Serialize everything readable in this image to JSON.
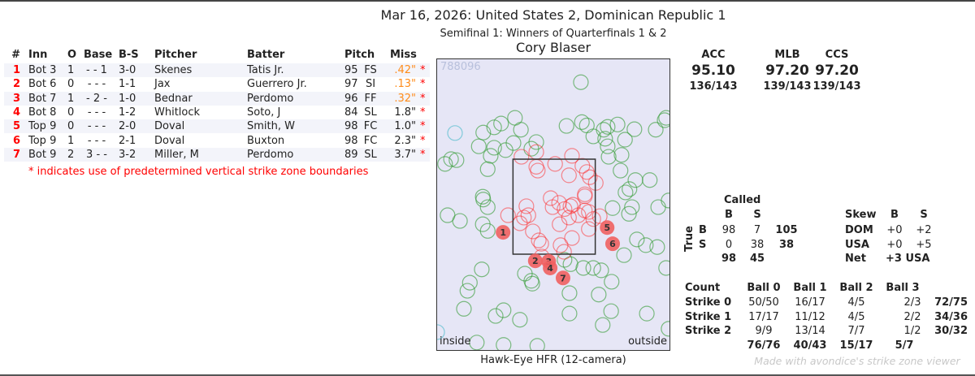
{
  "header": {
    "title": "Mar 16, 2026: United States 2, Dominican Republic 1",
    "subtitle": "Semifinal 1: Winners of Quarterfinals 1 & 2",
    "umpire": "Cory Blaser"
  },
  "table": {
    "columns": [
      "#",
      "Inn",
      "O",
      "Base",
      "B-S",
      "Pitcher",
      "Batter",
      "Pitch",
      "Miss"
    ],
    "rows": [
      {
        "num": "1",
        "inn": "Bot 3",
        "outs": "1",
        "base": "- - 1",
        "count": "3-0",
        "pitcher": "Skenes",
        "batter": "Tatis Jr.",
        "velo": "95",
        "type": "FS",
        "miss": ".42\"",
        "star": "*",
        "miss_color": "orange"
      },
      {
        "num": "2",
        "inn": "Bot 6",
        "outs": "0",
        "base": "- - -",
        "count": "1-1",
        "pitcher": "Jax",
        "batter": "Guerrero Jr.",
        "velo": "97",
        "type": "SI",
        "miss": ".13\"",
        "star": "*",
        "miss_color": "orange"
      },
      {
        "num": "3",
        "inn": "Bot 7",
        "outs": "1",
        "base": "- 2 -",
        "count": "1-0",
        "pitcher": "Bednar",
        "batter": "Perdomo",
        "velo": "96",
        "type": "FF",
        "miss": ".32\"",
        "star": "*",
        "miss_color": "orange"
      },
      {
        "num": "4",
        "inn": "Bot 8",
        "outs": "0",
        "base": "- - -",
        "count": "1-2",
        "pitcher": "Whitlock",
        "batter": "Soto, J",
        "velo": "84",
        "type": "SL",
        "miss": "1.8\"",
        "star": "*",
        "miss_color": "dark"
      },
      {
        "num": "5",
        "inn": "Top 9",
        "outs": "0",
        "base": "- - -",
        "count": "2-0",
        "pitcher": "Doval",
        "batter": "Smith, W",
        "velo": "98",
        "type": "FC",
        "miss": "1.0\"",
        "star": "*",
        "miss_color": "dark"
      },
      {
        "num": "6",
        "inn": "Top 9",
        "outs": "1",
        "base": "- - -",
        "count": "2-1",
        "pitcher": "Doval",
        "batter": "Buxton",
        "velo": "98",
        "type": "FC",
        "miss": "2.3\"",
        "star": "*",
        "miss_color": "dark"
      },
      {
        "num": "7",
        "inn": "Bot 9",
        "outs": "2",
        "base": "3 - -",
        "count": "3-2",
        "pitcher": "Miller, M",
        "batter": "Perdomo",
        "velo": "89",
        "type": "SL",
        "miss": "3.7\"",
        "star": "*",
        "miss_color": "dark"
      }
    ],
    "footnote": "* indicates use of predetermined vertical strike zone boundaries"
  },
  "chart_data": {
    "type": "scatter",
    "watermark": "788096",
    "xlabel_left": "inside",
    "xlabel_right": "outside",
    "caption": "Hawk-Eye HFR (12-camera)",
    "units": "feet (plate_x, plate_z)",
    "zone": {
      "x": [
        -0.83,
        0.83
      ],
      "z": [
        1.5,
        3.5
      ]
    },
    "xlim": [
      -2.38,
      2.34
    ],
    "zlim": [
      -0.6,
      5.62
    ],
    "colors": {
      "ball": "#2e9a2e",
      "strike": "#ff2020",
      "other": "#40b8c8",
      "missed": "#f06060"
    },
    "balls": [
      [
        0.54,
        5.12
      ],
      [
        -0.79,
        4.37
      ],
      [
        -0.67,
        4.12
      ],
      [
        -1.21,
        4.17
      ],
      [
        -1.07,
        4.25
      ],
      [
        -1.43,
        4.06
      ],
      [
        -1.28,
        3.57
      ],
      [
        -1.52,
        3.77
      ],
      [
        -2.2,
        3.4
      ],
      [
        -2.08,
        3.5
      ],
      [
        -1.97,
        3.48
      ],
      [
        -1.34,
        3.29
      ],
      [
        -1.21,
        3.74
      ],
      [
        -0.82,
        3.84
      ],
      [
        -0.36,
        3.86
      ],
      [
        -0.46,
        3.72
      ],
      [
        -0.98,
        3.69
      ],
      [
        0.25,
        4.2
      ],
      [
        0.56,
        4.28
      ],
      [
        0.66,
        4.21
      ],
      [
        0.79,
        3.98
      ],
      [
        1.0,
        4.12
      ],
      [
        1.08,
        4.18
      ],
      [
        1.28,
        4.23
      ],
      [
        1.62,
        4.13
      ],
      [
        2.05,
        4.12
      ],
      [
        2.23,
        4.32
      ],
      [
        2.26,
        4.37
      ],
      [
        1.43,
        3.91
      ],
      [
        1.03,
        3.93
      ],
      [
        1.08,
        3.77
      ],
      [
        1.36,
        3.59
      ],
      [
        1.1,
        3.55
      ],
      [
        1.34,
        3.26
      ],
      [
        1.44,
        2.8
      ],
      [
        1.52,
        2.87
      ],
      [
        1.93,
        3.06
      ],
      [
        1.64,
        3.06
      ],
      [
        -2.15,
        2.32
      ],
      [
        -1.9,
        2.2
      ],
      [
        -1.44,
        2.71
      ],
      [
        -1.43,
        2.65
      ],
      [
        -1.34,
        2.49
      ],
      [
        -1.44,
        2.13
      ],
      [
        -1.34,
        1.99
      ],
      [
        1.18,
        2.47
      ],
      [
        1.57,
        2.49
      ],
      [
        1.51,
        2.35
      ],
      [
        2.1,
        2.49
      ],
      [
        2.31,
        2.63
      ],
      [
        1.67,
        1.81
      ],
      [
        1.85,
        1.69
      ],
      [
        1.41,
        1.48
      ],
      [
        2.08,
        1.65
      ],
      [
        2.26,
        1.21
      ],
      [
        -1.46,
        1.18
      ],
      [
        -1.7,
        0.9
      ],
      [
        -1.75,
        0.73
      ],
      [
        -1.82,
        0.35
      ],
      [
        -1.02,
        0.32
      ],
      [
        -1.18,
        0.2
      ],
      [
        -0.69,
        0.12
      ],
      [
        -0.59,
        1.09
      ],
      [
        -0.46,
        0.94
      ],
      [
        0.33,
        1.29
      ],
      [
        0.59,
        1.21
      ],
      [
        0.21,
        1.38
      ],
      [
        0.79,
        1.21
      ],
      [
        0.95,
        1.16
      ],
      [
        0.31,
        0.68
      ],
      [
        0.31,
        0.25
      ],
      [
        0.9,
        0.65
      ],
      [
        1.16,
        0.92
      ],
      [
        0.98,
        0.01
      ],
      [
        1.15,
        0.3
      ],
      [
        -0.44,
        0.88
      ],
      [
        -1.56,
        -0.36
      ],
      [
        -1.02,
        -0.41
      ],
      [
        -0.34,
        -0.43
      ],
      [
        1.87,
        0.25
      ],
      [
        2.31,
        -0.07
      ]
    ],
    "other": [
      [
        -2.0,
        4.05
      ],
      [
        -2.36,
        -0.14
      ]
    ],
    "strikes": [
      [
        -0.66,
        3.55
      ],
      [
        -0.36,
        3.65
      ],
      [
        -0.33,
        3.26
      ],
      [
        -0.36,
        3.34
      ],
      [
        0.02,
        3.4
      ],
      [
        0.36,
        3.57
      ],
      [
        0.57,
        3.36
      ],
      [
        0.3,
        3.16
      ],
      [
        0.66,
        3.23
      ],
      [
        0.72,
        3.12
      ],
      [
        0.84,
        3.0
      ],
      [
        0.62,
        2.76
      ],
      [
        -0.56,
        2.51
      ],
      [
        -0.93,
        2.32
      ],
      [
        -0.52,
        2.32
      ],
      [
        -0.69,
        2.15
      ],
      [
        -0.61,
        2.27
      ],
      [
        -0.43,
        1.98
      ],
      [
        -0.31,
        1.79
      ],
      [
        -0.03,
        2.49
      ],
      [
        0.1,
        2.58
      ],
      [
        0.21,
        2.45
      ],
      [
        0.3,
        2.27
      ],
      [
        0.33,
        2.51
      ],
      [
        0.49,
        2.32
      ],
      [
        0.62,
        2.42
      ],
      [
        0.7,
        2.39
      ],
      [
        0.38,
        2.54
      ],
      [
        0.79,
        2.24
      ],
      [
        0.92,
        2.3
      ],
      [
        -0.07,
        2.68
      ],
      [
        0.62,
        2.72
      ],
      [
        0.13,
        1.69
      ],
      [
        0.2,
        1.55
      ],
      [
        -0.26,
        1.72
      ],
      [
        0.11,
        2.13
      ],
      [
        0.7,
        2.03
      ],
      [
        -0.25,
        1.45
      ],
      [
        0.36,
        1.84
      ]
    ],
    "missed": [
      {
        "label": "1",
        "x": -1.03,
        "z": 1.96
      },
      {
        "label": "2",
        "x": -0.38,
        "z": 1.36
      },
      {
        "label": "3",
        "x": -0.11,
        "z": 1.35
      },
      {
        "label": "4",
        "x": -0.08,
        "z": 1.21
      },
      {
        "label": "5",
        "x": 1.07,
        "z": 2.06
      },
      {
        "label": "6",
        "x": 1.18,
        "z": 1.72
      },
      {
        "label": "7",
        "x": 0.18,
        "z": 1.0
      }
    ]
  },
  "accuracy": [
    {
      "label": "ACC",
      "value": "95.10",
      "ratio": "136/143"
    },
    {
      "label": "MLB",
      "value": "97.20",
      "ratio": "139/143"
    },
    {
      "label": "CCS",
      "value": "97.20",
      "ratio": "139/143"
    }
  ],
  "confusion": {
    "called_label": "Called",
    "true_label": "True",
    "col_b": "B",
    "col_s": "S",
    "rows": [
      {
        "label": "B",
        "b": "98",
        "s": "7",
        "total": "105"
      },
      {
        "label": "S",
        "b": "0",
        "s": "38",
        "total": "38"
      }
    ],
    "totals": {
      "b": "98",
      "s": "45"
    }
  },
  "skew": {
    "label": "Skew",
    "col_b": "B",
    "col_s": "S",
    "rows": [
      {
        "team": "DOM",
        "b": "+0",
        "s": "+2"
      },
      {
        "team": "USA",
        "b": "+0",
        "s": "+5"
      }
    ],
    "net_label": "Net",
    "net_value": "+3 USA"
  },
  "counts": {
    "header": [
      "Count",
      "Ball 0",
      "Ball 1",
      "Ball 2",
      "Ball 3"
    ],
    "rows": [
      {
        "label": "Strike 0",
        "cells": [
          "50/50",
          "16/17",
          "4/5",
          "2/3"
        ],
        "total": "72/75"
      },
      {
        "label": "Strike 1",
        "cells": [
          "17/17",
          "11/12",
          "4/5",
          "2/2"
        ],
        "total": "34/36"
      },
      {
        "label": "Strike 2",
        "cells": [
          "9/9",
          "13/14",
          "7/7",
          "1/2"
        ],
        "total": "30/32"
      }
    ],
    "col_totals": [
      "76/76",
      "40/43",
      "15/17",
      "5/7"
    ]
  },
  "credit": "Made with avondice's strike zone viewer"
}
